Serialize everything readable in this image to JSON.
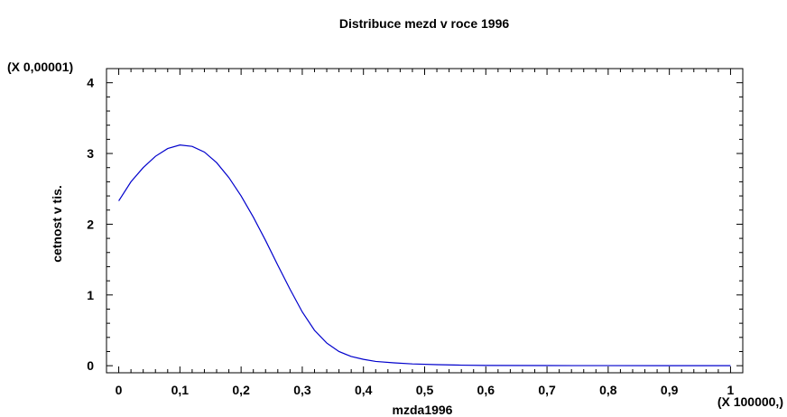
{
  "chart_data": {
    "type": "line",
    "title": "Distribuce mezd v roce 1996",
    "xlabel": "mzda1996",
    "ylabel": "cetnost v tis.",
    "x_multiplier_label": "(X 100000,)",
    "y_multiplier_label": "(X 0,00001)",
    "xlim": [
      -0.02,
      1.02
    ],
    "ylim": [
      -0.1,
      4.2
    ],
    "x_ticks": [
      0,
      0.1,
      0.2,
      0.3,
      0.4,
      0.5,
      0.6,
      0.7,
      0.8,
      0.9,
      1
    ],
    "x_tick_labels": [
      "0",
      "0,1",
      "0,2",
      "0,3",
      "0,4",
      "0,5",
      "0,6",
      "0,7",
      "0,8",
      "0,9",
      "1"
    ],
    "y_ticks": [
      0,
      1,
      2,
      3,
      4
    ],
    "y_tick_labels": [
      "0",
      "1",
      "2",
      "3",
      "4"
    ],
    "grid": false,
    "line_color": "#0000cc",
    "series": [
      {
        "x": [
          0,
          0.02,
          0.04,
          0.06,
          0.08,
          0.1,
          0.12,
          0.14,
          0.16,
          0.18,
          0.2,
          0.22,
          0.24,
          0.26,
          0.28,
          0.3,
          0.32,
          0.34,
          0.36,
          0.38,
          0.4,
          0.42,
          0.45,
          0.48,
          0.52,
          0.56,
          0.6,
          0.7,
          0.8,
          0.9,
          1
        ],
        "y": [
          2.33,
          2.6,
          2.8,
          2.96,
          3.07,
          3.12,
          3.1,
          3.02,
          2.87,
          2.66,
          2.4,
          2.1,
          1.77,
          1.42,
          1.08,
          0.76,
          0.5,
          0.32,
          0.2,
          0.13,
          0.09,
          0.06,
          0.04,
          0.025,
          0.015,
          0.008,
          0.004,
          0.002,
          0.001,
          0.0005,
          0
        ]
      }
    ]
  }
}
